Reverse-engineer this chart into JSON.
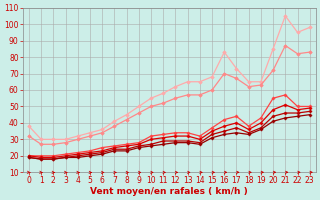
{
  "background_color": "#cceee8",
  "grid_color": "#aaaaaa",
  "xlabel": "Vent moyen/en rafales ( km/h )",
  "xlabel_color": "#cc0000",
  "ylabel_color": "#cc0000",
  "xlim": [
    -0.5,
    23.5
  ],
  "ylim": [
    10,
    110
  ],
  "yticks": [
    10,
    20,
    30,
    40,
    50,
    60,
    70,
    80,
    90,
    100,
    110
  ],
  "xticks": [
    0,
    1,
    2,
    3,
    4,
    5,
    6,
    7,
    8,
    9,
    10,
    11,
    12,
    13,
    14,
    15,
    16,
    17,
    18,
    19,
    20,
    21,
    22,
    23
  ],
  "x": [
    0,
    1,
    2,
    3,
    4,
    5,
    6,
    7,
    8,
    9,
    10,
    11,
    12,
    13,
    14,
    15,
    16,
    17,
    18,
    19,
    20,
    21,
    22,
    23
  ],
  "series": [
    {
      "y": [
        38,
        30,
        30,
        30,
        32,
        34,
        36,
        41,
        45,
        50,
        55,
        58,
        62,
        65,
        65,
        68,
        83,
        73,
        65,
        65,
        85,
        105,
        95,
        98
      ],
      "color": "#ffaaaa",
      "marker": "D",
      "markersize": 1.8,
      "linewidth": 0.9
    },
    {
      "y": [
        32,
        27,
        27,
        28,
        30,
        32,
        34,
        38,
        42,
        46,
        50,
        52,
        55,
        57,
        57,
        60,
        70,
        67,
        62,
        63,
        72,
        87,
        82,
        83
      ],
      "color": "#ff8888",
      "marker": "D",
      "markersize": 1.8,
      "linewidth": 0.9
    },
    {
      "y": [
        20,
        20,
        20,
        21,
        22,
        23,
        25,
        26,
        27,
        28,
        32,
        33,
        34,
        34,
        32,
        37,
        42,
        44,
        38,
        43,
        55,
        57,
        50,
        50
      ],
      "color": "#ff4444",
      "marker": "P",
      "markersize": 2,
      "linewidth": 0.9
    },
    {
      "y": [
        20,
        19,
        19,
        20,
        21,
        22,
        23,
        25,
        26,
        27,
        30,
        31,
        32,
        32,
        30,
        35,
        38,
        40,
        36,
        40,
        48,
        51,
        48,
        49
      ],
      "color": "#dd0000",
      "marker": "P",
      "markersize": 2,
      "linewidth": 0.9
    },
    {
      "y": [
        19,
        18,
        18,
        19,
        20,
        21,
        22,
        24,
        24,
        26,
        27,
        29,
        29,
        29,
        28,
        33,
        35,
        37,
        34,
        37,
        44,
        46,
        46,
        47
      ],
      "color": "#bb0000",
      "marker": "P",
      "markersize": 2,
      "linewidth": 0.9
    },
    {
      "y": [
        19,
        18,
        18,
        19,
        19,
        20,
        21,
        23,
        23,
        25,
        26,
        27,
        28,
        28,
        27,
        31,
        33,
        34,
        33,
        36,
        41,
        43,
        44,
        45
      ],
      "color": "#990000",
      "marker": "P",
      "markersize": 2,
      "linewidth": 0.9
    }
  ],
  "tick_fontsize": 5.5,
  "label_fontsize": 6.5
}
